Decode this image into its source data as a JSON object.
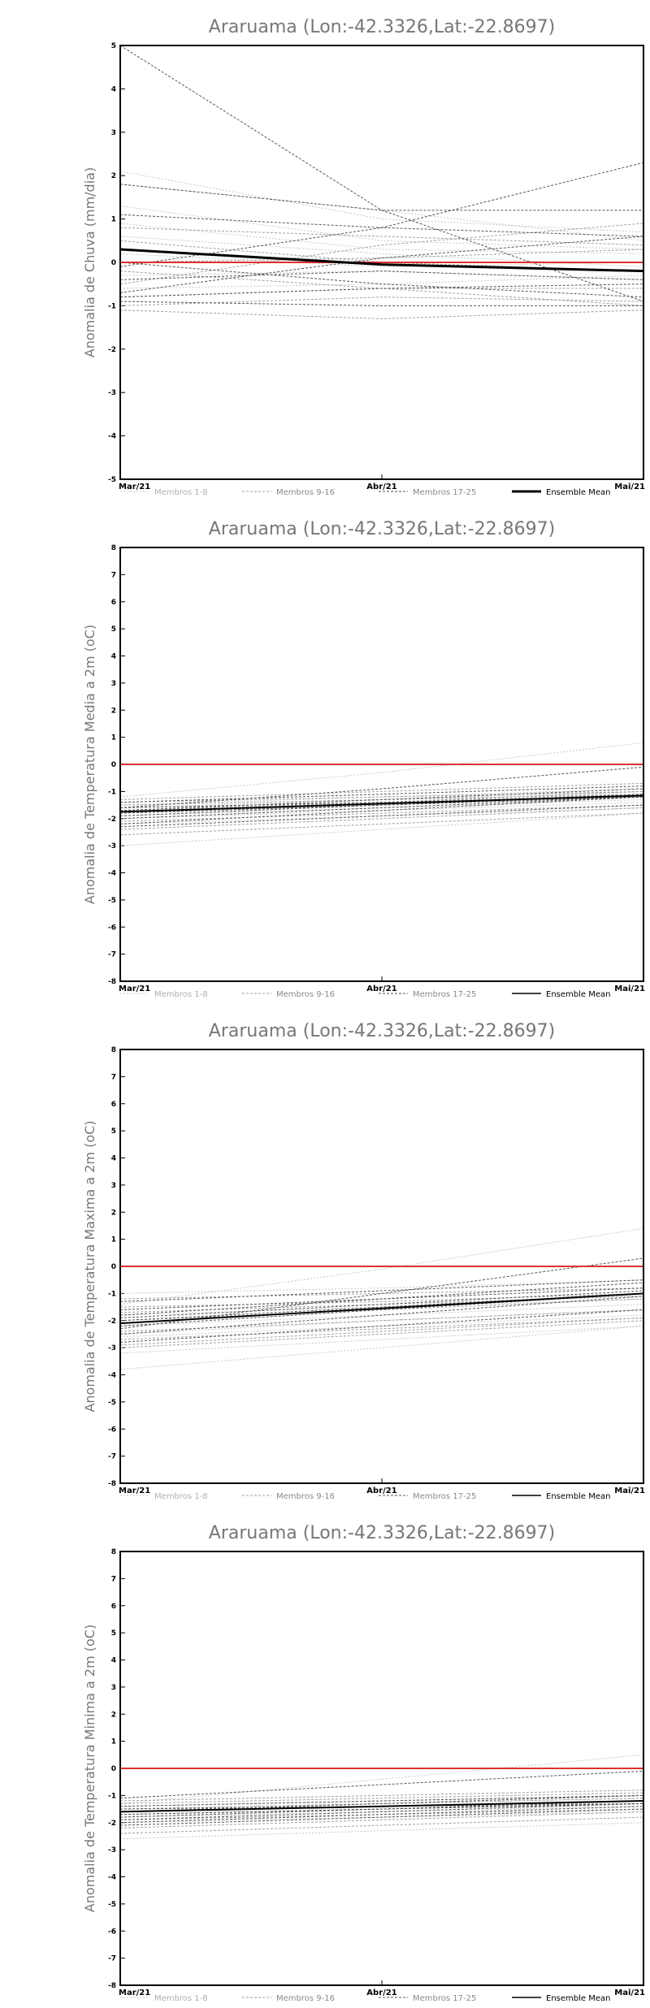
{
  "chart_data": [
    {
      "type": "line",
      "title": "Araruama (Lon:-42.3326,Lat:-22.8697)",
      "ylabel": "Anomalia de Chuva (mm/dia)",
      "categories": [
        "Mar/21",
        "Abr/21",
        "Mai/21"
      ],
      "yticks": [
        "5",
        "4",
        "3",
        "2",
        "1",
        "0",
        "-1",
        "-2",
        "-3",
        "-4",
        "-5"
      ],
      "ylim": [
        -5,
        5
      ],
      "grid": false,
      "reference_line": {
        "y": 0,
        "color": "#e03030"
      },
      "legend": [
        {
          "label": "Membros 1-8",
          "color": "#c8c8c8",
          "dash": "2,2"
        },
        {
          "label": "Membros 9-16",
          "color": "#a0a0a0",
          "dash": "3,2"
        },
        {
          "label": "Membros 17-25",
          "color": "#555555",
          "dash": "3,2"
        },
        {
          "label": "Ensemble Mean",
          "color": "#000000",
          "dash": ""
        }
      ],
      "mean": [
        0.3,
        -0.05,
        -0.2
      ],
      "members": [
        [
          2.1,
          1.0,
          0.7
        ],
        [
          1.8,
          1.2,
          0.5
        ],
        [
          1.3,
          0.5,
          0.3
        ],
        [
          0.9,
          0.3,
          0.2
        ],
        [
          0.6,
          0.2,
          -0.1
        ],
        [
          0.2,
          -0.1,
          0.0
        ],
        [
          -0.3,
          -0.2,
          -0.4
        ],
        [
          -0.6,
          -0.5,
          -0.3
        ],
        [
          -0.8,
          -0.6,
          -0.6
        ],
        [
          -1.0,
          -0.8,
          -0.9
        ],
        [
          -0.5,
          0.4,
          0.9
        ],
        [
          0.5,
          0.0,
          -0.2
        ],
        [
          -0.2,
          -0.6,
          -1.0
        ],
        [
          0.8,
          0.6,
          0.4
        ],
        [
          -1.1,
          -1.3,
          -1.1
        ],
        [
          0.0,
          0.1,
          0.3
        ],
        [
          5.0,
          1.2,
          -0.9
        ],
        [
          1.8,
          1.2,
          1.2
        ],
        [
          -0.1,
          0.8,
          2.3
        ],
        [
          -0.9,
          -1.0,
          -1.0
        ],
        [
          -0.7,
          0.1,
          0.6
        ],
        [
          -0.4,
          -0.2,
          -0.4
        ],
        [
          0.0,
          -0.5,
          -0.8
        ],
        [
          1.1,
          0.8,
          0.6
        ],
        [
          -0.8,
          -0.6,
          -0.5
        ]
      ]
    },
    {
      "type": "line",
      "title": "Araruama (Lon:-42.3326,Lat:-22.8697)",
      "ylabel": "Anomalia de Temperatura Media a 2m (oC)",
      "categories": [
        "Mar/21",
        "Abr/21",
        "Mai/21"
      ],
      "yticks": [
        "8",
        "7",
        "6",
        "5",
        "4",
        "3",
        "2",
        "1",
        "0",
        "-1",
        "-2",
        "-3",
        "-4",
        "-5",
        "-6",
        "-7",
        "-8"
      ],
      "ylim": [
        -8,
        8
      ],
      "grid": false,
      "reference_line": {
        "y": 0,
        "color": "#e03030"
      },
      "legend": [
        {
          "label": "Membros 1-8",
          "color": "#c8c8c8",
          "dash": "2,2"
        },
        {
          "label": "Membros 9-16",
          "color": "#a0a0a0",
          "dash": "3,2"
        },
        {
          "label": "Membros 17-25",
          "color": "#555555",
          "dash": "3,2"
        },
        {
          "label": "Ensemble Mean",
          "color": "#000000",
          "dash": ""
        }
      ],
      "mean": [
        -1.75,
        -1.45,
        -1.15
      ],
      "members": [
        [
          -1.2,
          -0.3,
          0.8
        ],
        [
          -3.0,
          -2.4,
          -1.8
        ],
        [
          -1.5,
          -1.2,
          -0.9
        ],
        [
          -2.0,
          -1.7,
          -1.4
        ],
        [
          -1.8,
          -1.5,
          -1.2
        ],
        [
          -2.2,
          -1.9,
          -1.6
        ],
        [
          -1.6,
          -1.3,
          -1.0
        ],
        [
          -1.9,
          -1.6,
          -1.3
        ],
        [
          -1.3,
          -1.0,
          -0.7
        ],
        [
          -2.4,
          -2.0,
          -1.6
        ],
        [
          -1.7,
          -1.4,
          -1.1
        ],
        [
          -2.1,
          -1.8,
          -1.5
        ],
        [
          -1.4,
          -1.2,
          -1.0
        ],
        [
          -2.6,
          -2.2,
          -1.8
        ],
        [
          -1.8,
          -1.4,
          -1.0
        ],
        [
          -1.5,
          -1.3,
          -1.1
        ],
        [
          -1.6,
          -0.9,
          -0.1
        ],
        [
          -1.9,
          -1.5,
          -1.1
        ],
        [
          -2.3,
          -1.9,
          -1.5
        ],
        [
          -1.7,
          -1.3,
          -0.9
        ],
        [
          -2.0,
          -1.6,
          -1.2
        ],
        [
          -1.4,
          -1.1,
          -0.8
        ],
        [
          -2.2,
          -1.7,
          -1.2
        ],
        [
          -1.8,
          -1.5,
          -1.2
        ],
        [
          -1.6,
          -1.4,
          -1.2
        ]
      ]
    },
    {
      "type": "line",
      "title": "Araruama (Lon:-42.3326,Lat:-22.8697)",
      "ylabel": "Anomalia de Temperatura Maxima a 2m (oC)",
      "categories": [
        "Mar/21",
        "Abr/21",
        "Mai/21"
      ],
      "yticks": [
        "8",
        "7",
        "6",
        "5",
        "4",
        "3",
        "2",
        "1",
        "0",
        "-1",
        "-2",
        "-3",
        "-4",
        "-5",
        "-6",
        "-7",
        "-8"
      ],
      "ylim": [
        -8,
        8
      ],
      "grid": false,
      "reference_line": {
        "y": 0,
        "color": "#e03030"
      },
      "legend": [
        {
          "label": "Membros 1-8",
          "color": "#c8c8c8",
          "dash": "2,2"
        },
        {
          "label": "Membros 9-16",
          "color": "#a0a0a0",
          "dash": "3,2"
        },
        {
          "label": "Membros 17-25",
          "color": "#555555",
          "dash": "3,2"
        },
        {
          "label": "Ensemble Mean",
          "color": "#000000",
          "dash": ""
        }
      ],
      "mean": [
        -2.1,
        -1.55,
        -1.0
      ],
      "members": [
        [
          -1.4,
          -0.1,
          1.4
        ],
        [
          -3.8,
          -3.0,
          -2.2
        ],
        [
          -1.0,
          -0.8,
          -0.5
        ],
        [
          -2.5,
          -2.0,
          -1.6
        ],
        [
          -2.2,
          -1.8,
          -1.4
        ],
        [
          -3.2,
          -2.7,
          -2.2
        ],
        [
          -1.8,
          -1.5,
          -1.2
        ],
        [
          -2.6,
          -2.2,
          -1.8
        ],
        [
          -1.2,
          -1.0,
          -0.8
        ],
        [
          -2.9,
          -2.4,
          -1.9
        ],
        [
          -2.0,
          -1.6,
          -1.2
        ],
        [
          -1.5,
          -1.3,
          -1.0
        ],
        [
          -3.0,
          -2.5,
          -2.0
        ],
        [
          -2.4,
          -2.0,
          -1.6
        ],
        [
          -1.7,
          -1.4,
          -1.1
        ],
        [
          -2.7,
          -2.3,
          -1.9
        ],
        [
          -2.3,
          -1.0,
          0.3
        ],
        [
          -2.0,
          -1.5,
          -1.0
        ],
        [
          -1.6,
          -1.2,
          -0.8
        ],
        [
          -2.8,
          -2.2,
          -1.6
        ],
        [
          -1.9,
          -1.4,
          -0.9
        ],
        [
          -2.5,
          -1.8,
          -1.1
        ],
        [
          -1.3,
          -0.9,
          -0.5
        ],
        [
          -2.2,
          -1.6,
          -1.0
        ],
        [
          -1.8,
          -1.2,
          -0.6
        ]
      ]
    },
    {
      "type": "line",
      "title": "Araruama (Lon:-42.3326,Lat:-22.8697)",
      "ylabel": "Anomalia de Temperatura Minima a 2m (oC)",
      "categories": [
        "Mar/21",
        "Abr/21",
        "Mai/21"
      ],
      "yticks": [
        "8",
        "7",
        "6",
        "5",
        "4",
        "3",
        "2",
        "1",
        "0",
        "-1",
        "-2",
        "-3",
        "-4",
        "-5",
        "-6",
        "-7",
        "-8"
      ],
      "ylim": [
        -8,
        8
      ],
      "grid": false,
      "reference_line": {
        "y": 0,
        "color": "#e03030"
      },
      "legend": [
        {
          "label": "Membros 1-8",
          "color": "#c8c8c8",
          "dash": "2,2"
        },
        {
          "label": "Membros 9-16",
          "color": "#a0a0a0",
          "dash": "3,2"
        },
        {
          "label": "Membros 17-25",
          "color": "#555555",
          "dash": "3,2"
        },
        {
          "label": "Ensemble Mean",
          "color": "#000000",
          "dash": ""
        }
      ],
      "mean": [
        -1.6,
        -1.4,
        -1.2
      ],
      "members": [
        [
          -1.3,
          -0.4,
          0.5
        ],
        [
          -2.6,
          -2.3,
          -2.0
        ],
        [
          -1.4,
          -1.2,
          -1.0
        ],
        [
          -1.8,
          -1.6,
          -1.4
        ],
        [
          -1.6,
          -1.4,
          -1.2
        ],
        [
          -2.0,
          -1.8,
          -1.6
        ],
        [
          -1.5,
          -1.3,
          -1.1
        ],
        [
          -1.7,
          -1.5,
          -1.3
        ],
        [
          -1.2,
          -1.0,
          -0.8
        ],
        [
          -2.2,
          -1.9,
          -1.6
        ],
        [
          -1.6,
          -1.4,
          -1.2
        ],
        [
          -1.9,
          -1.7,
          -1.5
        ],
        [
          -1.3,
          -1.1,
          -0.9
        ],
        [
          -2.4,
          -2.1,
          -1.8
        ],
        [
          -1.7,
          -1.5,
          -1.3
        ],
        [
          -1.5,
          -1.3,
          -1.1
        ],
        [
          -1.1,
          -0.6,
          -0.1
        ],
        [
          -1.8,
          -1.5,
          -1.2
        ],
        [
          -2.1,
          -1.8,
          -1.5
        ],
        [
          -1.6,
          -1.3,
          -1.0
        ],
        [
          -1.9,
          -1.6,
          -1.3
        ],
        [
          -1.4,
          -1.2,
          -1.0
        ],
        [
          -2.0,
          -1.7,
          -1.4
        ],
        [
          -1.7,
          -1.5,
          -1.3
        ],
        [
          -1.5,
          -1.4,
          -1.3
        ]
      ]
    }
  ]
}
